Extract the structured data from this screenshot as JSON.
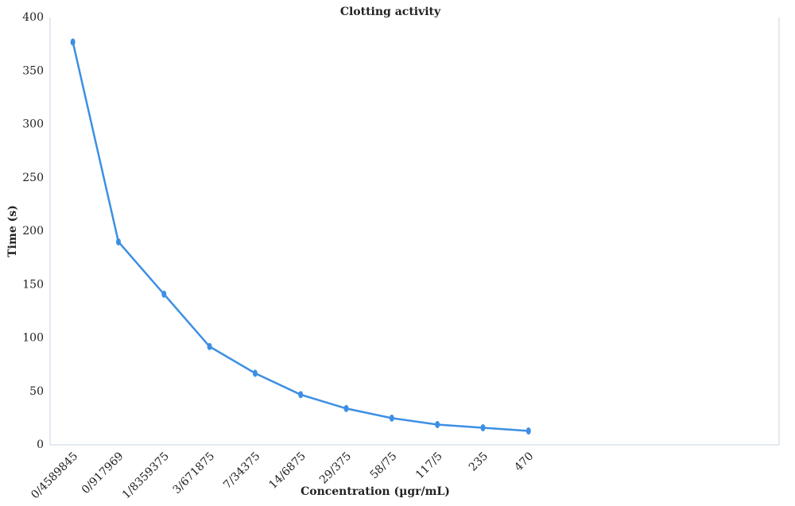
{
  "chart_data": {
    "type": "line",
    "title": "Clotting activity",
    "x_label": "Concentration (µgr/mL)",
    "y_label": "Time (s)",
    "categories": [
      "0/4589845",
      "0/917969",
      "1/8359375",
      "3/671875",
      "7/34375",
      "14/6875",
      "29/375",
      "58/75",
      "117/5",
      "235",
      "470",
      null,
      null,
      null,
      null,
      null
    ],
    "values": [
      377,
      190,
      141,
      92,
      67,
      47,
      34,
      25,
      19,
      16,
      13,
      null,
      null,
      null,
      null,
      null
    ],
    "color": "#3d8fe3",
    "ylim": [
      0,
      400
    ],
    "yticks": [
      0,
      50,
      100,
      150,
      200,
      250,
      300,
      350,
      400
    ],
    "grid": false
  }
}
